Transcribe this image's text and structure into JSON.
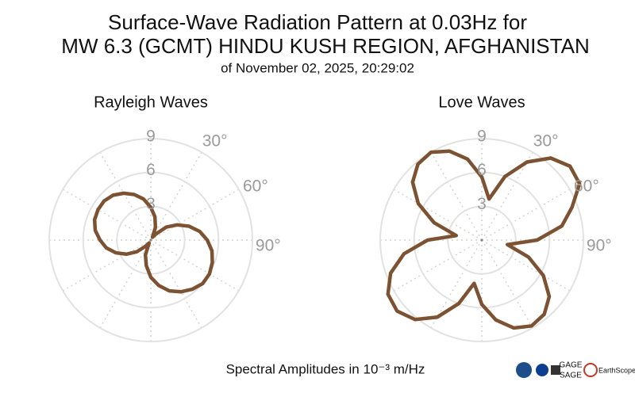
{
  "title": [
    "Surface-Wave Radiation Pattern at 0.03Hz for",
    "MW 6.3 (GCMT) HINDU KUSH REGION, AFGHANISTAN"
  ],
  "subtitle": "of November 02, 2025, 20:29:02",
  "caption": "Spectral Amplitudes in 10⁻³ m/Hz",
  "logos": [
    "GAGE",
    "SAGE",
    "EarthScope"
  ],
  "chart_data": [
    {
      "type": "polar",
      "title": "Rayleigh Waves",
      "color": "#7d5232",
      "direction": "clockwise",
      "zero": "N",
      "rlim": [
        0,
        9
      ],
      "rticks": [
        3,
        6,
        9
      ],
      "thetaticks": [
        {
          "value": 0,
          "label": null
        },
        {
          "value": 30,
          "label": "30°"
        },
        {
          "value": 60,
          "label": "60°"
        },
        {
          "value": 90,
          "label": "90°"
        },
        {
          "value": 120,
          "label": null
        },
        {
          "value": 150,
          "label": null
        },
        {
          "value": 180,
          "label": null
        },
        {
          "value": 210,
          "label": null
        },
        {
          "value": 240,
          "label": null
        },
        {
          "value": 270,
          "label": null
        },
        {
          "value": 300,
          "label": null
        },
        {
          "value": 330,
          "label": null
        }
      ],
      "theta": [
        0,
        10,
        20,
        30,
        40,
        50,
        60,
        70,
        80,
        90,
        100,
        110,
        120,
        130,
        140,
        150,
        160,
        170,
        180,
        190,
        200,
        210,
        220,
        230,
        240,
        250,
        260,
        270,
        280,
        290,
        300,
        310,
        320,
        330,
        340,
        350
      ],
      "values": [
        2.9,
        2.1,
        1.2,
        0.3,
        0.7,
        1.8,
        2.7,
        3.6,
        4.4,
        5.0,
        5.5,
        5.8,
        6.0,
        6.0,
        5.7,
        5.3,
        4.8,
        4.1,
        3.3,
        2.3,
        1.4,
        0.3,
        0.7,
        1.6,
        2.5,
        3.3,
        4.0,
        4.5,
        5.0,
        5.3,
        5.4,
        5.4,
        5.2,
        4.8,
        4.3,
        3.7
      ]
    },
    {
      "type": "polar",
      "title": "Love Waves",
      "color": "#7d5232",
      "direction": "clockwise",
      "zero": "N",
      "rlim": [
        0,
        9
      ],
      "rticks": [
        3,
        6,
        9
      ],
      "thetaticks": [
        {
          "value": 0,
          "label": null
        },
        {
          "value": 30,
          "label": "30°"
        },
        {
          "value": 60,
          "label": "60°"
        },
        {
          "value": 90,
          "label": "90°"
        },
        {
          "value": 120,
          "label": null
        },
        {
          "value": 150,
          "label": null
        },
        {
          "value": 180,
          "label": null
        },
        {
          "value": 210,
          "label": null
        },
        {
          "value": 240,
          "label": null
        },
        {
          "value": 270,
          "label": null
        },
        {
          "value": 300,
          "label": null
        },
        {
          "value": 330,
          "label": null
        }
      ],
      "theta": [
        0,
        10,
        20,
        30,
        40,
        50,
        60,
        70,
        80,
        90,
        100,
        110,
        120,
        130,
        140,
        150,
        160,
        170,
        180,
        190,
        200,
        210,
        220,
        230,
        240,
        250,
        260,
        270,
        280,
        290,
        300,
        310,
        320,
        330,
        340,
        350
      ],
      "values": [
        5.6,
        3.7,
        6.0,
        8.0,
        9.5,
        10.2,
        10.0,
        8.5,
        7.2,
        4.9,
        2.3,
        4.4,
        6.3,
        7.8,
        8.6,
        8.8,
        8.3,
        7.2,
        5.7,
        3.9,
        6.0,
        7.9,
        9.2,
        9.8,
        9.6,
        8.6,
        7.0,
        4.8,
        2.3,
        4.5,
        6.5,
        8.0,
        8.8,
        9.0,
        8.4,
        7.3
      ]
    }
  ]
}
